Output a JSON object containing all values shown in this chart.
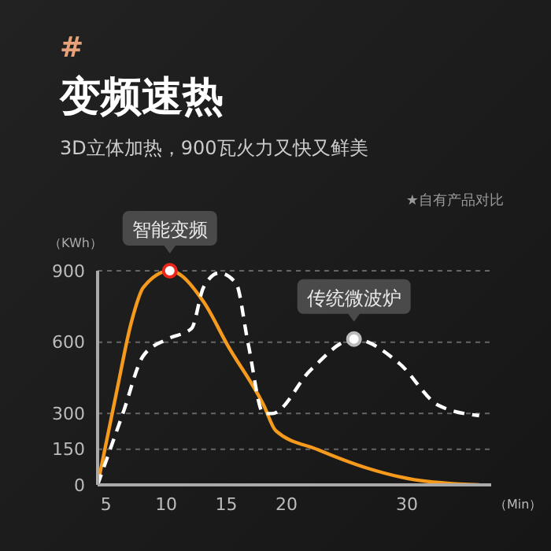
{
  "chart_data": {
    "type": "line",
    "title": "变频速热",
    "subtitle": "3D立体加热，900瓦火力又快又鲜美",
    "annotations": [
      "#",
      "★自有产品对比",
      {
        "text": "智能变频",
        "x": 10.3,
        "y": 900
      },
      {
        "text": "传统微波炉",
        "x": 25.6,
        "y": 613
      }
    ],
    "xlabel": "（Min）",
    "ylabel": "（KWh）",
    "xlim": [
      4.3,
      37
    ],
    "xticks": [
      5,
      10,
      15,
      20,
      30
    ],
    "ylim": [
      0,
      900
    ],
    "yticks": [
      0,
      150,
      300,
      600,
      900
    ],
    "grid": "y",
    "legend": false,
    "series": [
      {
        "color": "#f59a1c",
        "line_style": "solid",
        "x": [
          4.3,
          5.9,
          7.1,
          8.1,
          10.3,
          13.1,
          15.1,
          18.1,
          19.1,
          22.6,
          26.6,
          30.6,
          36
        ],
        "values": [
          0,
          396,
          683,
          830,
          900,
          770,
          587,
          335,
          228,
          148,
          72,
          22,
          0
        ]
      },
      {
        "color": "#ffffff",
        "line_style": "dashed",
        "x": [
          4.3,
          6.4,
          8.1,
          10.1,
          12.1,
          13.1,
          14.4,
          15.8,
          16.8,
          18.1,
          18.8,
          22,
          25.6,
          29.4,
          32.6,
          36
        ],
        "values": [
          0,
          300,
          543,
          613,
          657,
          830,
          891,
          848,
          596,
          300,
          300,
          483,
          613,
          509,
          335,
          291
        ]
      }
    ]
  }
}
